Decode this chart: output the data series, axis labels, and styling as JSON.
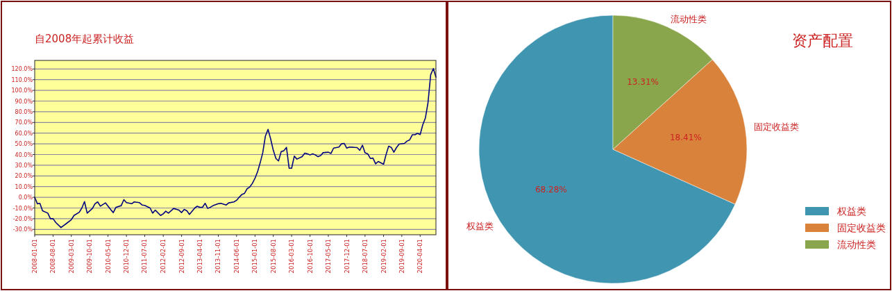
{
  "chart_data": [
    {
      "type": "line",
      "title": "自2008年起累计收益",
      "grid": "y",
      "xlim": [
        "2008-01",
        "2020-10"
      ],
      "xticks": [
        "2008-01-01",
        "2008-08-01",
        "2009-03-01",
        "2009-10-01",
        "2010-05-01",
        "2010-12-01",
        "2011-07-01",
        "2012-02-01",
        "2012-09-01",
        "2013-04-01",
        "2013-11-01",
        "2014-06-01",
        "2015-01-01",
        "2015-08-01",
        "2016-03-01",
        "2016-10-01",
        "2017-05-01",
        "2017-12-01",
        "2018-07-01",
        "2019-02-01",
        "2019-09-01",
        "2020-04-01"
      ],
      "ylim": [
        -35,
        128
      ],
      "yticks": [
        {
          "value": -30,
          "label": "-30.0%"
        },
        {
          "value": -20,
          "label": "-20.0%"
        },
        {
          "value": -10,
          "label": "-10.0%"
        },
        {
          "value": 0,
          "label": "0.0%"
        },
        {
          "value": 10,
          "label": "10.0%"
        },
        {
          "value": 20,
          "label": "20.0%"
        },
        {
          "value": 30,
          "label": "30.0%"
        },
        {
          "value": 40,
          "label": "40.0%"
        },
        {
          "value": 50,
          "label": "50.0%"
        },
        {
          "value": 60,
          "label": "60.0%"
        },
        {
          "value": 70,
          "label": "70.0%"
        },
        {
          "value": 80,
          "label": "80.0%"
        },
        {
          "value": 90,
          "label": "90.0%"
        },
        {
          "value": 100,
          "label": "100.0%"
        },
        {
          "value": 110,
          "label": "110.0%"
        },
        {
          "value": 120,
          "label": "120.0%"
        }
      ],
      "x": [
        "2008-01",
        "2008-02",
        "2008-03",
        "2008-04",
        "2008-06",
        "2008-07",
        "2008-08",
        "2008-09",
        "2008-11",
        "2009-01",
        "2009-03",
        "2009-04",
        "2009-06",
        "2009-07",
        "2009-08",
        "2009-09",
        "2009-11",
        "2009-12",
        "2010-01",
        "2010-02",
        "2010-04",
        "2010-06",
        "2010-07",
        "2010-08",
        "2010-10",
        "2010-11",
        "2010-12",
        "2011-02",
        "2011-03",
        "2011-05",
        "2011-06",
        "2011-07",
        "2011-09",
        "2011-10",
        "2011-11",
        "2012-01",
        "2012-02",
        "2012-03",
        "2012-04",
        "2012-06",
        "2012-08",
        "2012-09",
        "2012-10",
        "2012-11",
        "2012-12",
        "2013-02",
        "2013-03",
        "2013-04",
        "2013-05",
        "2013-06",
        "2013-07",
        "2013-08",
        "2013-09",
        "2013-11",
        "2013-12",
        "2014-02",
        "2014-03",
        "2014-05",
        "2014-06",
        "2014-07",
        "2014-08",
        "2014-09",
        "2014-10",
        "2014-11",
        "2014-12",
        "2015-01",
        "2015-02",
        "2015-03",
        "2015-04",
        "2015-05",
        "2015-06",
        "2015-07",
        "2015-08",
        "2015-09",
        "2015-10",
        "2015-11",
        "2015-12",
        "2016-01",
        "2016-02",
        "2016-03",
        "2016-04",
        "2016-05",
        "2016-07",
        "2016-08",
        "2016-09",
        "2016-10",
        "2016-11",
        "2016-12",
        "2017-01",
        "2017-02",
        "2017-03",
        "2017-05",
        "2017-06",
        "2017-07",
        "2017-09",
        "2017-10",
        "2017-11",
        "2017-12",
        "2018-01",
        "2018-03",
        "2018-04",
        "2018-05",
        "2018-06",
        "2018-07",
        "2018-08",
        "2018-09",
        "2018-10",
        "2018-11",
        "2018-12",
        "2019-02",
        "2019-03",
        "2019-04",
        "2019-05",
        "2019-06",
        "2019-07",
        "2019-08",
        "2019-10",
        "2019-11",
        "2019-12",
        "2020-01",
        "2020-02",
        "2020-03",
        "2020-04",
        "2020-05",
        "2020-06",
        "2020-07",
        "2020-08",
        "2020-09",
        "2020-10"
      ],
      "series": [
        {
          "color": "#000080",
          "values": [
            0,
            -6,
            -5.6,
            -12.6,
            -14.8,
            -20,
            -20,
            -23.5,
            -28.3,
            -24.6,
            -21,
            -17,
            -14,
            -10,
            -4,
            -14.8,
            -10.4,
            -6,
            -4.3,
            -8.3,
            -5.2,
            -11.5,
            -14.3,
            -9.3,
            -7.8,
            -2.2,
            -5,
            -6,
            -4.3,
            -5,
            -7.2,
            -7.6,
            -10,
            -14.8,
            -12,
            -17,
            -15.4,
            -13,
            -14.8,
            -10.4,
            -12,
            -14.3,
            -11.3,
            -12.6,
            -16,
            -10,
            -8.3,
            -9.3,
            -9.3,
            -5.6,
            -10.4,
            -9.3,
            -7.8,
            -6,
            -5.6,
            -7.2,
            -5.2,
            -4.3,
            -2.8,
            0,
            2.6,
            3.7,
            8,
            9.6,
            13,
            17.8,
            24.3,
            32,
            41.7,
            57,
            63.5,
            54.8,
            44,
            36.3,
            34,
            42.8,
            43.5,
            46.7,
            27.2,
            27.2,
            38.5,
            35.7,
            38,
            41.3,
            40.7,
            39.6,
            40.7,
            39.6,
            38,
            39.1,
            41.7,
            42.2,
            41,
            46,
            47,
            50,
            50.4,
            46,
            47,
            46.7,
            46.5,
            43.9,
            48.7,
            41.7,
            40.7,
            36.3,
            36.7,
            31.3,
            33.5,
            30.9,
            39.6,
            47.8,
            46.7,
            42.2,
            46.5,
            49.8,
            50.4,
            52.6,
            53.7,
            58.5,
            58.5,
            59.8,
            58.7,
            67.8,
            74.3,
            88.5,
            114.6,
            120.4,
            112.4
          ]
        }
      ]
    },
    {
      "type": "pie",
      "title": "资产配置",
      "legend": "bottom right",
      "categories": [
        "权益类",
        "固定收益类",
        "流动性类"
      ],
      "values": [
        68.28,
        18.41,
        13.31
      ],
      "colors": [
        "#4095b0",
        "#d9823b",
        "#8aa64c"
      ],
      "value_labels": [
        "68.28%",
        "18.41%",
        "13.31%"
      ]
    }
  ]
}
